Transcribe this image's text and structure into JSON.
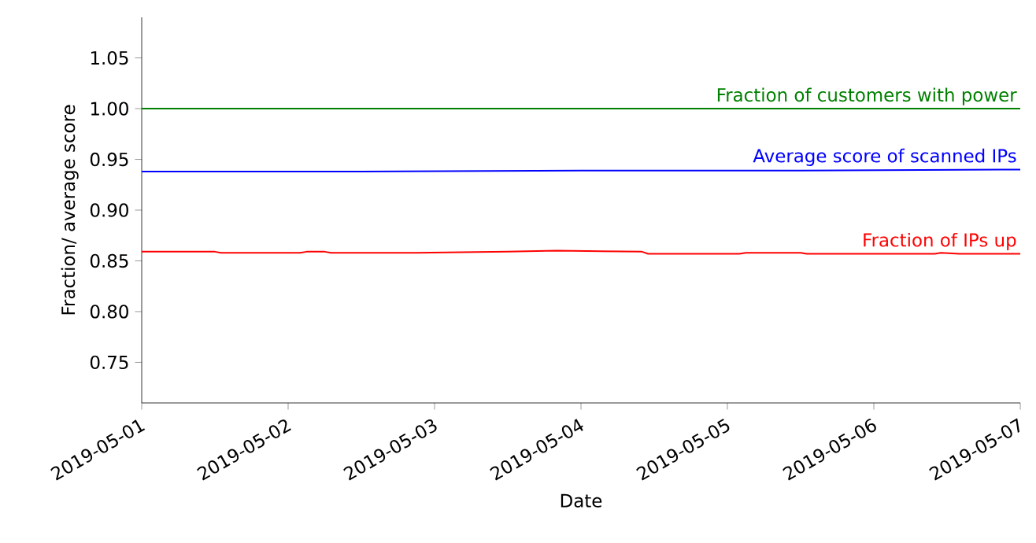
{
  "chart_data": {
    "type": "line",
    "xlabel": "Date",
    "ylabel": "Fraction/ average score",
    "xlim": [
      "2019-05-01",
      "2019-05-07"
    ],
    "ylim": [
      0.71,
      1.09
    ],
    "xticks": [
      "2019-05-01",
      "2019-05-02",
      "2019-05-03",
      "2019-05-04",
      "2019-05-05",
      "2019-05-06",
      "2019-05-07"
    ],
    "yticks": [
      0.75,
      {
        "value": 0.8,
        "label": "0.80"
      },
      0.85,
      {
        "value": 0.9,
        "label": "0.90"
      },
      0.95,
      {
        "value": 1.0,
        "label": "1.00"
      },
      1.05
    ],
    "grid": false,
    "marker": "none",
    "line_style": "solid",
    "series": [
      {
        "name": "Fraction of customers with power",
        "color": "#008000",
        "x": [
          "2019-05-01T00:00",
          "2019-05-07T00:00"
        ],
        "values": [
          1.0,
          1.0
        ]
      },
      {
        "name": "Average score of scanned IPs",
        "color": "#0000ff",
        "x": [
          "2019-05-01T00:00",
          "2019-05-02T12:00",
          "2019-05-04T00:00",
          "2019-05-05T12:00",
          "2019-05-07T00:00"
        ],
        "values": [
          0.938,
          0.938,
          0.939,
          0.939,
          0.94
        ]
      },
      {
        "name": "Fraction of IPs up",
        "color": "#ff0000",
        "x": [
          "2019-05-01T00:00",
          "2019-05-01T12:00",
          "2019-05-01T13:00",
          "2019-05-02T02:00",
          "2019-05-02T03:00",
          "2019-05-02T06:00",
          "2019-05-02T07:00",
          "2019-05-02T20:00",
          "2019-05-02T21:00",
          "2019-05-03T12:00",
          "2019-05-03T20:00",
          "2019-05-04T10:00",
          "2019-05-04T11:00",
          "2019-05-05T02:00",
          "2019-05-05T03:00",
          "2019-05-05T12:00",
          "2019-05-05T13:00",
          "2019-05-06T10:00",
          "2019-05-06T11:00",
          "2019-05-06T14:00",
          "2019-05-07T00:00"
        ],
        "values": [
          0.859,
          0.859,
          0.858,
          0.858,
          0.859,
          0.859,
          0.858,
          0.858,
          0.858,
          0.859,
          0.86,
          0.859,
          0.857,
          0.857,
          0.858,
          0.858,
          0.857,
          0.857,
          0.858,
          0.857,
          0.857
        ]
      }
    ]
  }
}
